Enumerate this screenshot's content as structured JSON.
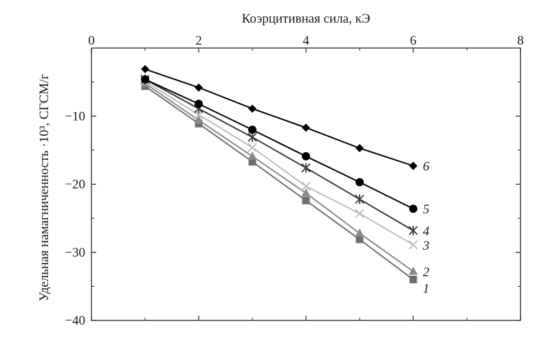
{
  "chart_data": {
    "type": "line",
    "xlabel": "Коэрцитивная сила, кЭ",
    "ylabel": "Удельная намагниченность ·10³, СГСМ/г",
    "xlim": [
      0,
      8
    ],
    "ylim": [
      -40,
      0
    ],
    "xticks": [
      0,
      2,
      4,
      6,
      8
    ],
    "yticks": [
      -10,
      -20,
      -30,
      -40
    ],
    "x_axis_position": "top",
    "grid": false,
    "legend": "none (series numbered at line ends)",
    "x": [
      1,
      2,
      3,
      4,
      5,
      6
    ],
    "series": [
      {
        "name": "1",
        "marker": "square",
        "color": "#6f6f6f",
        "values": [
          -5.6,
          -11.1,
          -16.7,
          -22.4,
          -28.1,
          -34.0
        ]
      },
      {
        "name": "2",
        "marker": "triangle",
        "color": "#8a8a8a",
        "values": [
          -5.2,
          -10.6,
          -15.9,
          -21.3,
          -27.2,
          -32.8
        ]
      },
      {
        "name": "3",
        "marker": "cross",
        "color": "#bdbdbd",
        "values": [
          -4.9,
          -9.8,
          -14.6,
          -20.3,
          -24.3,
          -28.9
        ]
      },
      {
        "name": "4",
        "marker": "asterisk",
        "color": "#3a3a3a",
        "values": [
          -4.6,
          -8.9,
          -13.1,
          -17.6,
          -22.2,
          -26.8
        ]
      },
      {
        "name": "5",
        "marker": "circle",
        "color": "#000000",
        "values": [
          -4.6,
          -8.2,
          -12.0,
          -15.9,
          -19.7,
          -23.6
        ]
      },
      {
        "name": "6",
        "marker": "diamond",
        "color": "#000000",
        "values": [
          -3.1,
          -5.8,
          -8.9,
          -11.7,
          -14.7,
          -17.3
        ]
      }
    ]
  }
}
